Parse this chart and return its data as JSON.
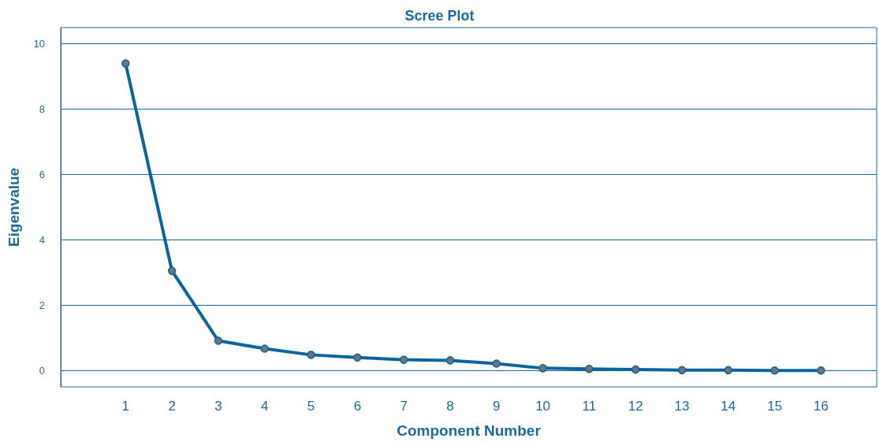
{
  "chart_data": {
    "type": "line",
    "title": "Scree Plot",
    "xlabel": "Component Number",
    "ylabel": "Eigenvalue",
    "x": [
      1,
      2,
      3,
      4,
      5,
      6,
      7,
      8,
      9,
      10,
      11,
      12,
      13,
      14,
      15,
      16
    ],
    "series": [
      {
        "color": "#0b649e",
        "values": [
          9.4,
          3.05,
          0.91,
          0.67,
          0.48,
          0.4,
          0.33,
          0.31,
          0.21,
          0.07,
          0.05,
          0.03,
          0.01,
          0.01,
          0.0,
          0.0
        ]
      }
    ],
    "xlim": [
      -0.4,
      17.2
    ],
    "xticks": [
      1,
      2,
      3,
      4,
      5,
      6,
      7,
      8,
      9,
      10,
      11,
      12,
      13,
      14,
      15,
      16
    ],
    "ylim": [
      -0.5,
      10.5
    ],
    "yticks": [
      0,
      2,
      4,
      6,
      8,
      10
    ],
    "grid": "y",
    "marker": "circle",
    "line_style": "solid"
  }
}
